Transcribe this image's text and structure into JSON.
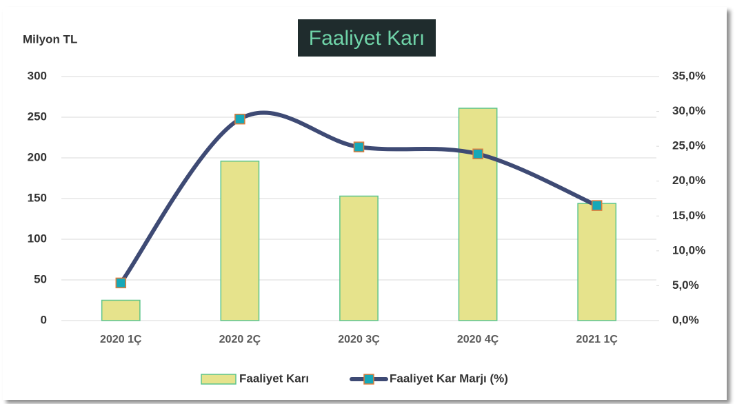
{
  "chart_data": {
    "type": "combo",
    "title": "Faaliyet Karı",
    "y_axis_label": "Milyon TL",
    "categories": [
      "2020 1Ç",
      "2020 2Ç",
      "2020 3Ç",
      "2020 4Ç",
      "2021 1Ç"
    ],
    "series": [
      {
        "name": "Faaliyet Karı",
        "type": "bar",
        "color": "#e6e38c",
        "edge_color": "#5cc48c",
        "values": [
          25,
          196,
          153,
          261,
          144
        ]
      },
      {
        "name": "Faaliyet Kar Marjı (%)",
        "type": "line",
        "axis": "y2",
        "color": "#3e4a74",
        "marker_color": "#17a8b8",
        "marker_edge_color": "#e07b39",
        "values": [
          5.4,
          28.9,
          24.9,
          23.9,
          16.5
        ]
      }
    ],
    "ylim": [
      0,
      300
    ],
    "yticks": [
      0,
      50,
      100,
      150,
      200,
      250,
      300
    ],
    "y2lim": [
      0,
      35
    ],
    "y2ticks": [
      {
        "value": 0,
        "label": "0,0%"
      },
      {
        "value": 5,
        "label": "5,0%"
      },
      {
        "value": 10,
        "label": "10,0%"
      },
      {
        "value": 15,
        "label": "15,0%"
      },
      {
        "value": 20,
        "label": "20,0%"
      },
      {
        "value": 25,
        "label": "25,0%"
      },
      {
        "value": 30,
        "label": "30,0%"
      },
      {
        "value": 35,
        "label": "35,0%"
      }
    ],
    "grid": true,
    "legend": "bottom"
  }
}
